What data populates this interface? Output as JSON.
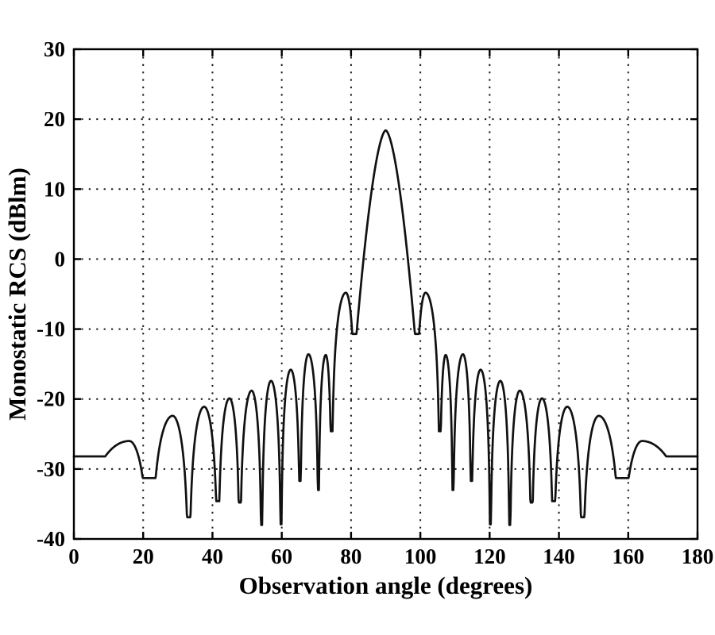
{
  "figure": {
    "background": "#ffffff",
    "frame_color": "#000000",
    "grid_color": "#1a1a1a",
    "curve_color": "#111111"
  },
  "chart_data": {
    "type": "line",
    "title": "",
    "xlabel": "Observation angle (degrees)",
    "ylabel": "Monostatic RCS (dBlm)",
    "xlim": [
      0,
      180
    ],
    "ylim": [
      -40,
      30
    ],
    "x_ticks": [
      0,
      20,
      40,
      60,
      80,
      100,
      120,
      140,
      160,
      180
    ],
    "y_ticks": [
      30,
      20,
      10,
      0,
      -10,
      -20,
      -30,
      -40
    ],
    "grid": "dotted",
    "legend": "none",
    "main_peak": {
      "angle_deg": 90,
      "value_db": 18.4
    },
    "endpoint_level_db": -28.2,
    "lobe_peaks_deg_db": [
      [
        16.0,
        -26.0
      ],
      [
        28.5,
        -22.4
      ],
      [
        37.6,
        -21.1
      ],
      [
        44.9,
        -19.9
      ],
      [
        51.3,
        -18.8
      ],
      [
        56.9,
        -17.4
      ],
      [
        62.6,
        -15.8
      ],
      [
        67.7,
        -13.6
      ],
      [
        72.7,
        -13.7
      ],
      [
        78.5,
        -4.8
      ],
      [
        90.0,
        18.4
      ],
      [
        101.5,
        -4.8
      ],
      [
        107.3,
        -13.7
      ],
      [
        112.3,
        -13.6
      ],
      [
        117.4,
        -15.8
      ],
      [
        123.1,
        -17.4
      ],
      [
        128.7,
        -18.8
      ],
      [
        135.1,
        -19.9
      ],
      [
        142.4,
        -21.1
      ],
      [
        151.5,
        -22.4
      ],
      [
        164.0,
        -26.0
      ]
    ],
    "lobe_minima_deg_db": [
      [
        22.1,
        -31.3
      ],
      [
        33.2,
        -36.9
      ],
      [
        41.6,
        -34.6
      ],
      [
        47.9,
        -34.8
      ],
      [
        54.2,
        -38.0
      ],
      [
        59.8,
        -37.9
      ],
      [
        65.3,
        -31.7
      ],
      [
        70.6,
        -33.0
      ],
      [
        74.4,
        -24.6
      ],
      [
        81.3,
        -10.7
      ],
      [
        98.7,
        -10.7
      ],
      [
        105.6,
        -24.6
      ],
      [
        109.4,
        -33.0
      ],
      [
        114.7,
        -31.7
      ],
      [
        120.2,
        -37.9
      ],
      [
        125.8,
        -38.0
      ],
      [
        132.1,
        -34.8
      ],
      [
        138.4,
        -34.6
      ],
      [
        146.8,
        -36.9
      ],
      [
        157.9,
        -31.3
      ]
    ],
    "lobes": [
      {
        "a": 0.0,
        "a_db": -28.2,
        "p": 16.0,
        "p_db": -26.0,
        "b": 22.1,
        "b_db": -31.3
      },
      {
        "a": 22.1,
        "a_db": -31.3,
        "p": 28.5,
        "p_db": -22.4,
        "b": 33.2,
        "b_db": -36.9
      },
      {
        "a": 33.2,
        "a_db": -36.9,
        "p": 37.6,
        "p_db": -21.1,
        "b": 41.6,
        "b_db": -34.6
      },
      {
        "a": 41.6,
        "a_db": -34.6,
        "p": 44.9,
        "p_db": -19.9,
        "b": 47.9,
        "b_db": -34.8
      },
      {
        "a": 47.9,
        "a_db": -34.8,
        "p": 51.3,
        "p_db": -18.8,
        "b": 54.2,
        "b_db": -38.0
      },
      {
        "a": 54.2,
        "a_db": -38.0,
        "p": 56.9,
        "p_db": -17.4,
        "b": 59.8,
        "b_db": -37.9
      },
      {
        "a": 59.8,
        "a_db": -37.9,
        "p": 62.6,
        "p_db": -15.8,
        "b": 65.3,
        "b_db": -31.7
      },
      {
        "a": 65.3,
        "a_db": -31.7,
        "p": 67.7,
        "p_db": -13.6,
        "b": 70.6,
        "b_db": -33.0
      },
      {
        "a": 70.6,
        "a_db": -33.0,
        "p": 72.7,
        "p_db": -13.7,
        "b": 74.4,
        "b_db": -24.6
      },
      {
        "a": 74.4,
        "a_db": -24.6,
        "p": 78.5,
        "p_db": -4.8,
        "b": 81.3,
        "b_db": -10.7
      },
      {
        "a": 81.3,
        "a_db": -10.7,
        "p": 90.0,
        "p_db": 18.4,
        "b": 98.7,
        "b_db": -10.7,
        "model": "power",
        "k": 0.832,
        "n": 1.668
      },
      {
        "a": 98.7,
        "a_db": -10.7,
        "p": 101.5,
        "p_db": -4.8,
        "b": 105.6,
        "b_db": -24.6
      },
      {
        "a": 105.6,
        "a_db": -24.6,
        "p": 107.3,
        "p_db": -13.7,
        "b": 109.4,
        "b_db": -33.0
      },
      {
        "a": 109.4,
        "a_db": -33.0,
        "p": 112.3,
        "p_db": -13.6,
        "b": 114.7,
        "b_db": -31.7
      },
      {
        "a": 114.7,
        "a_db": -31.7,
        "p": 117.4,
        "p_db": -15.8,
        "b": 120.2,
        "b_db": -37.9
      },
      {
        "a": 120.2,
        "a_db": -37.9,
        "p": 123.1,
        "p_db": -17.4,
        "b": 125.8,
        "b_db": -38.0
      },
      {
        "a": 125.8,
        "a_db": -38.0,
        "p": 128.7,
        "p_db": -18.8,
        "b": 132.1,
        "b_db": -34.8
      },
      {
        "a": 132.1,
        "a_db": -34.8,
        "p": 135.1,
        "p_db": -19.9,
        "b": 138.4,
        "b_db": -34.6
      },
      {
        "a": 138.4,
        "a_db": -34.6,
        "p": 142.4,
        "p_db": -21.1,
        "b": 146.8,
        "b_db": -36.9
      },
      {
        "a": 146.8,
        "a_db": -36.9,
        "p": 151.5,
        "p_db": -22.4,
        "b": 157.9,
        "b_db": -31.3
      },
      {
        "a": 157.9,
        "a_db": -31.3,
        "p": 164.0,
        "p_db": -26.0,
        "b": 180.0,
        "b_db": -28.2
      }
    ]
  }
}
